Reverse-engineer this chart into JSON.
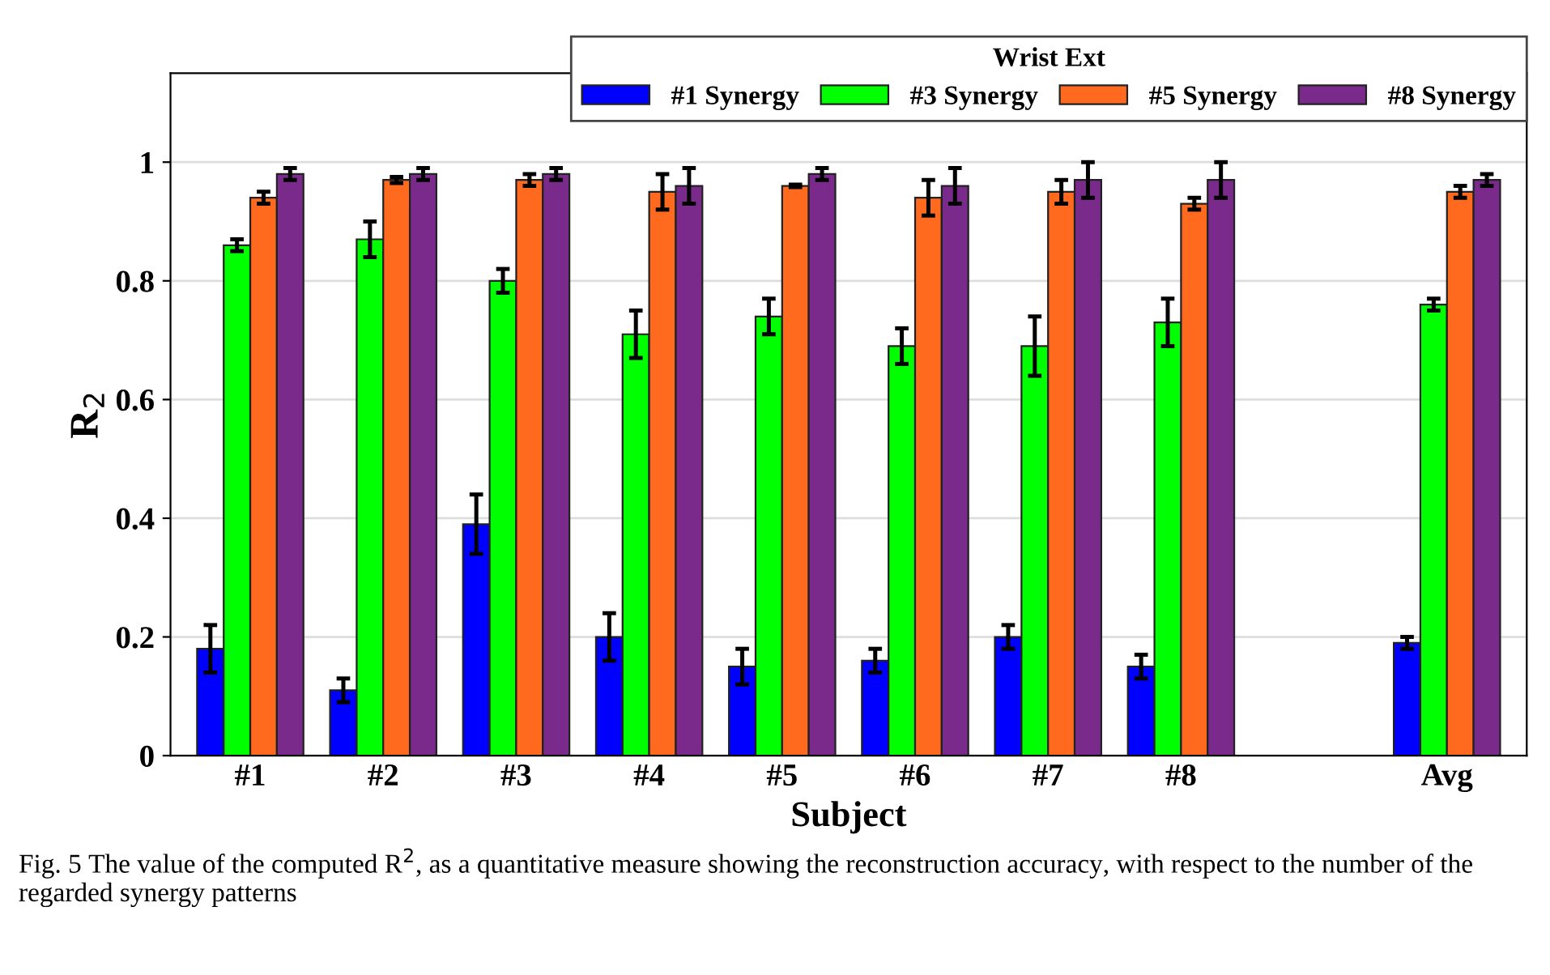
{
  "chart_data": {
    "type": "bar",
    "xlabel": "Subject",
    "ylabel": "R$_{2}$",
    "legend_title": "Wrist Ext",
    "legend": "top right",
    "grid": "y",
    "categories": [
      "#1",
      "#2",
      "#3",
      "#4",
      "#5",
      "#6",
      "#7",
      "#8",
      null,
      "Avg"
    ],
    "series": [
      {
        "name": "#1 Synergy",
        "color": "#0000ff",
        "values": [
          0.18,
          0.11,
          0.39,
          0.2,
          0.15,
          0.16,
          0.2,
          0.15,
          null,
          0.19
        ],
        "errors": [
          0.04,
          0.02,
          0.05,
          0.04,
          0.03,
          0.02,
          0.02,
          0.02,
          null,
          0.01
        ]
      },
      {
        "name": "#3 Synergy",
        "color": "#00ff00",
        "values": [
          0.86,
          0.87,
          0.8,
          0.71,
          0.74,
          0.69,
          0.69,
          0.73,
          null,
          0.76
        ],
        "errors": [
          0.01,
          0.03,
          0.02,
          0.04,
          0.03,
          0.03,
          0.05,
          0.04,
          null,
          0.01
        ]
      },
      {
        "name": "#5 Synergy",
        "color": "#ff6a1f",
        "values": [
          0.94,
          0.97,
          0.97,
          0.95,
          0.96,
          0.94,
          0.95,
          0.93,
          null,
          0.95
        ],
        "errors": [
          0.01,
          0.005,
          0.01,
          0.03,
          0.002,
          0.03,
          0.02,
          0.01,
          null,
          0.01
        ]
      },
      {
        "name": "#8 Synergy",
        "color": "#7a2a8a",
        "values": [
          0.98,
          0.98,
          0.98,
          0.96,
          0.98,
          0.96,
          0.97,
          0.97,
          null,
          0.97
        ],
        "errors": [
          0.01,
          0.01,
          0.01,
          0.03,
          0.01,
          0.03,
          0.03,
          0.03,
          null,
          0.01
        ]
      }
    ],
    "ylim": [
      0,
      1.15
    ],
    "yticks": [
      0,
      0.2,
      0.4,
      0.6,
      0.8,
      1
    ],
    "annotations": [
      "Fig. 5 The value of the computed R$^{2}$, as a quantitative measure showing the reconstruction accuracy, with respect to the number of the regarded synergy patterns"
    ]
  }
}
